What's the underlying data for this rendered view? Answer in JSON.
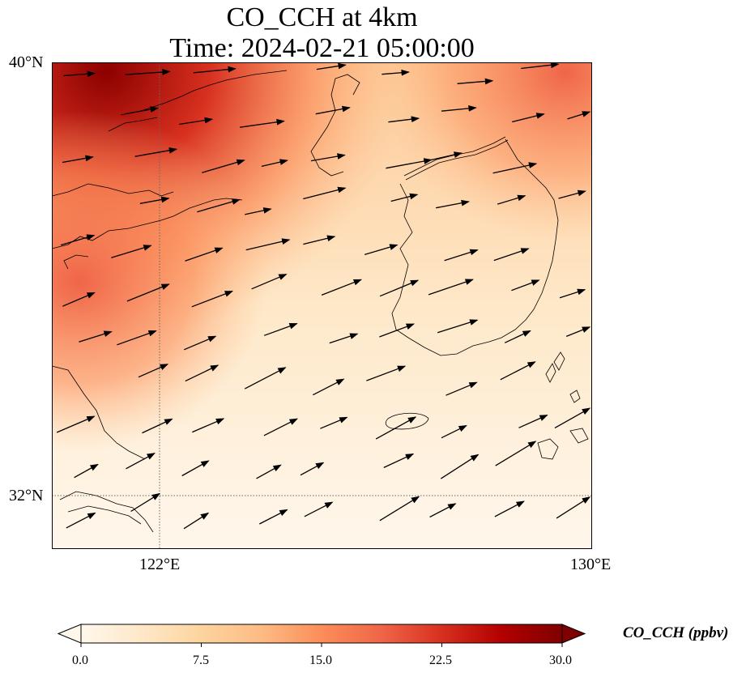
{
  "title": {
    "line1": "CO_CCH at 4km",
    "line2": "Time: 2024-02-21 05:00:00"
  },
  "map": {
    "field": "CO_CCH",
    "level": "4km",
    "time": "2024-02-21 05:00:00",
    "lat_range": [
      31.2,
      40.0
    ],
    "lon_range": [
      120.4,
      130.0
    ],
    "lat_ticks": [
      {
        "value": 40,
        "label": "40°N"
      },
      {
        "value": 32,
        "label": "32°N"
      }
    ],
    "lon_ticks": [
      {
        "value": 122,
        "label": "122°E"
      },
      {
        "value": 130,
        "label": "130°E"
      }
    ],
    "gridlines": "dotted",
    "wind_vectors": "west-southwesterly",
    "colormap": "OrRd"
  },
  "colorbar": {
    "label": "CO_CCH (ppbv)",
    "min": 0.0,
    "max": 30.0,
    "ticks": [
      "0.0",
      "7.5",
      "15.0",
      "22.5",
      "30.0"
    ],
    "extend": "both",
    "colors": [
      "#fff7ec",
      "#fee8c8",
      "#fdd49e",
      "#fdbb84",
      "#fc8d59",
      "#ef6548",
      "#d7301f",
      "#b30000",
      "#7f0000"
    ]
  }
}
